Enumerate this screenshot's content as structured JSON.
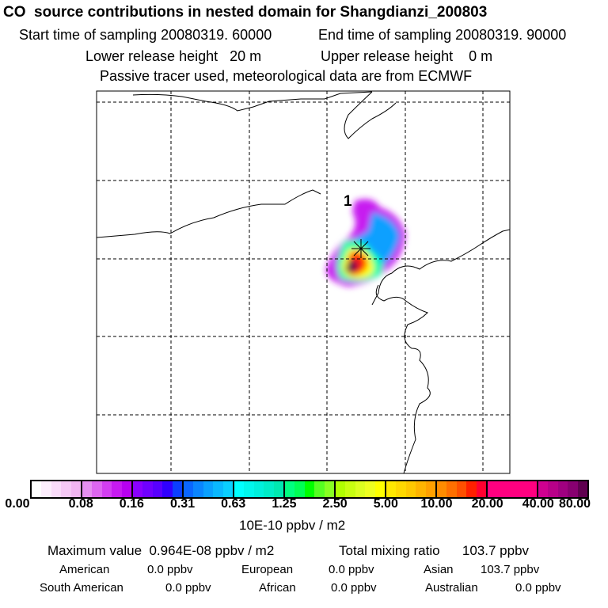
{
  "title": "CO  source contributions in nested domain for Shangdianzi_200803",
  "header": {
    "start_label": "Start time of sampling 20080319. 60000",
    "end_label": "End time of sampling 20080319. 90000",
    "lower_label": "Lower release height   20 m",
    "upper_label": "Upper release height    0 m",
    "tracer_note": "Passive tracer used, meteorological data are from ECMWF"
  },
  "map": {
    "marker_label": "1"
  },
  "colorbar": {
    "ticks": [
      "0.00",
      "0.08",
      "0.16",
      "0.31",
      "0.63",
      "1.25",
      "2.50",
      "5.00",
      "10.00",
      "20.00",
      "40.00",
      "80.00"
    ],
    "units": "10E-10 ppbv / m2",
    "colors": [
      [
        "#ffffff",
        "#fdeefd",
        "#fadcfa",
        "#f6c9f6",
        "#f2b6f2"
      ],
      [
        "#e58ff0",
        "#dd66f0",
        "#d23ef0",
        "#c71af0",
        "#b800f0"
      ],
      [
        "#8a00ff",
        "#7000ff",
        "#5800ff",
        "#3000ff",
        "#0b3fff"
      ],
      [
        "#0a66ff",
        "#0a85ff",
        "#0aa0ff",
        "#0ab8ff",
        "#0acfff"
      ],
      [
        "#00ffff",
        "#00f7ec",
        "#00f0dc",
        "#00ecc8",
        "#00e8b0"
      ],
      [
        "#00ff80",
        "#00ff55",
        "#00ff00",
        "#55ff22",
        "#88ff22"
      ],
      [
        "#b0ff00",
        "#c8ff10",
        "#dcff20",
        "#eeff20",
        "#ffff00"
      ],
      [
        "#ffe800",
        "#ffd800",
        "#ffc800",
        "#ffb400",
        "#ffa000"
      ],
      [
        "#ff8c00",
        "#ff7000",
        "#ff5000",
        "#ff2000",
        "#ff0030"
      ],
      [
        "#ff0080",
        "#ff0080",
        "#ff0080",
        "#ff0080",
        "#ff0080"
      ],
      [
        "#d00090",
        "#b80088",
        "#a00080",
        "#880070",
        "#600050"
      ]
    ]
  },
  "summary": {
    "max_label": "Maximum value  0.964E-08 ppbv / m2",
    "total_label": "Total mixing ratio      103.7 ppbv",
    "american_label": "American",
    "american_value": "0.0 ppbv",
    "european_label": "European",
    "european_value": "0.0 ppbv",
    "asian_label": "Asian",
    "asian_value": "103.7 ppbv",
    "south_american_label": "South American",
    "south_american_value": "0.0 ppbv",
    "african_label": "African",
    "african_value": "0.0 ppbv",
    "australian_label": "Australian",
    "australian_value": "0.0 ppbv"
  }
}
